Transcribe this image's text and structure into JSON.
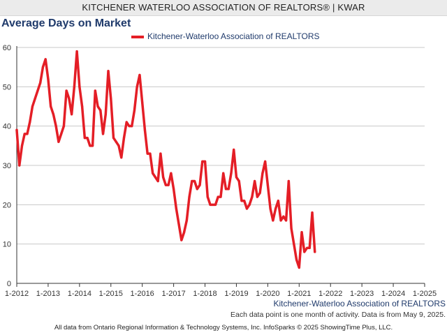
{
  "header": {
    "title": "KITCHENER WATERLOO ASSOCIATION OF REALTORS® | KWAR"
  },
  "colors": {
    "series": "#e41e26",
    "grid": "#c8c8c8",
    "title": "#1f3a6b"
  },
  "chart_data": {
    "type": "line",
    "title": "Average Days on Market",
    "xlabel": "",
    "ylabel": "",
    "ylim": [
      0,
      60
    ],
    "yticks": [
      0,
      10,
      20,
      30,
      40,
      50,
      60
    ],
    "xtick_labels": [
      "1-2012",
      "1-2013",
      "1-2014",
      "1-2015",
      "1-2016",
      "1-2017",
      "1-2018",
      "1-2019",
      "1-2020",
      "1-2021",
      "1-2022",
      "1-2023",
      "1-2024",
      "1-2025"
    ],
    "grid": true,
    "legend_position": "top",
    "series": [
      {
        "name": "Kitchener-Waterloo Association of REALTORS",
        "start": "2012-01",
        "frequency": "monthly",
        "values": [
          39,
          30,
          35,
          38,
          38,
          41,
          45,
          47,
          49,
          51,
          55,
          57,
          52,
          45,
          43,
          40,
          36,
          38,
          40,
          49,
          47,
          43,
          50,
          59,
          50,
          45,
          37,
          37,
          35,
          35,
          49,
          45,
          44,
          38,
          43,
          54,
          47,
          37,
          36,
          35,
          32,
          37,
          41,
          40,
          40,
          44,
          50,
          53,
          46,
          39,
          33,
          33,
          28,
          27,
          26,
          33,
          27,
          25,
          25,
          28,
          24,
          19,
          15,
          11,
          13,
          16,
          22,
          26,
          26,
          24,
          25,
          31,
          31,
          22,
          20,
          20,
          20,
          22,
          22,
          28,
          24,
          24,
          28,
          34,
          27,
          26,
          21,
          21,
          19,
          20,
          22,
          26,
          22,
          23,
          28,
          31,
          25,
          19,
          16,
          19,
          21,
          16,
          17,
          16,
          26,
          14,
          10,
          6,
          4,
          13,
          8,
          9,
          9,
          18,
          8
        ]
      }
    ]
  },
  "footer": {
    "series_label": "Kitchener-Waterloo Association of REALTORS",
    "note": "Each data point is one month of activity. Data is from May 9, 2025.",
    "source": "All data from Ontario Regional Information & Technology Systems, Inc. InfoSparks © 2025 ShowingTime Plus, LLC."
  }
}
